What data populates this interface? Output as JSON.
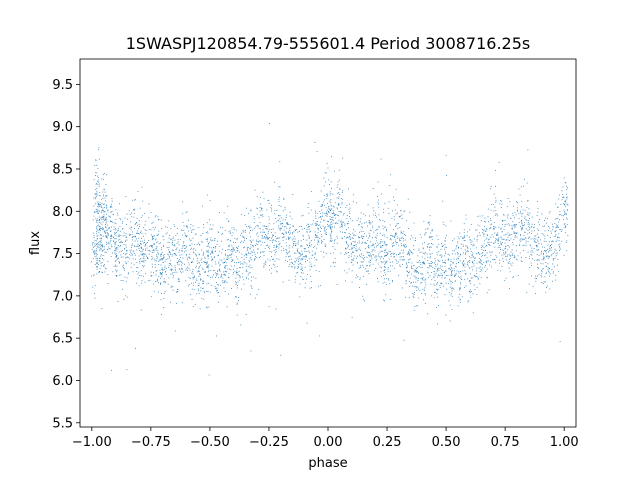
{
  "chart_data": {
    "type": "scatter",
    "title": "1SWASPJ120854.79-555601.4 Period 3008716.25s",
    "xlabel": "phase",
    "ylabel": "flux",
    "xlim": [
      -1.05,
      1.05
    ],
    "ylim": [
      5.45,
      9.8
    ],
    "xticks": [
      -1.0,
      -0.75,
      -0.5,
      -0.25,
      0.0,
      0.25,
      0.5,
      0.75,
      1.0
    ],
    "xtick_labels": [
      "−1.00",
      "−0.75",
      "−0.50",
      "−0.25",
      "0.00",
      "0.25",
      "0.50",
      "0.75",
      "1.00"
    ],
    "yticks": [
      5.5,
      6.0,
      6.5,
      7.0,
      7.5,
      8.0,
      8.5,
      9.0,
      9.5
    ],
    "ytick_labels": [
      "5.5",
      "6.0",
      "6.5",
      "7.0",
      "7.5",
      "8.0",
      "8.5",
      "9.0",
      "9.5"
    ],
    "grid": false,
    "point_color": "#1f77b4",
    "series": [
      {
        "x": [
          -0.99,
          -0.98,
          -0.97,
          -0.96,
          -0.95,
          -0.93,
          -0.91,
          -0.89,
          -0.86,
          -0.83,
          -0.8,
          -0.78,
          -0.75,
          -0.72,
          -0.7,
          -0.67,
          -0.64,
          -0.61,
          -0.58,
          -0.55,
          -0.52,
          -0.5,
          -0.47,
          -0.44,
          -0.41,
          -0.38,
          -0.35,
          -0.32,
          -0.29,
          -0.26,
          -0.23,
          -0.2,
          -0.17,
          -0.14,
          -0.11,
          -0.08,
          -0.05,
          -0.02,
          0.0,
          0.02,
          0.05,
          0.08,
          0.11,
          0.14,
          0.17,
          0.2,
          0.23,
          0.25,
          0.28,
          0.31,
          0.34,
          0.37,
          0.4,
          0.43,
          0.46,
          0.49,
          0.52,
          0.55,
          0.58,
          0.61,
          0.64,
          0.67,
          0.7,
          0.73,
          0.76,
          0.79,
          0.82,
          0.85,
          0.88,
          0.91,
          0.94,
          0.97,
          1.0
        ],
        "y": [
          7.5,
          8.2,
          7.9,
          7.6,
          8.0,
          7.8,
          7.7,
          7.6,
          7.5,
          7.7,
          7.6,
          7.5,
          7.6,
          7.5,
          7.4,
          7.5,
          7.4,
          7.6,
          7.4,
          7.3,
          7.4,
          7.5,
          7.3,
          7.4,
          7.5,
          7.4,
          7.5,
          7.6,
          7.8,
          7.7,
          7.6,
          7.8,
          7.7,
          7.6,
          7.5,
          7.6,
          7.7,
          7.9,
          8.0,
          7.9,
          8.0,
          7.7,
          7.6,
          7.5,
          7.6,
          7.7,
          7.6,
          7.5,
          7.7,
          7.6,
          7.4,
          7.3,
          7.4,
          7.5,
          7.3,
          7.4,
          7.3,
          7.4,
          7.5,
          7.4,
          7.5,
          7.6,
          7.8,
          7.7,
          7.6,
          7.7,
          7.8,
          7.7,
          7.6,
          7.5,
          7.6,
          7.7,
          8.0
        ]
      }
    ]
  }
}
